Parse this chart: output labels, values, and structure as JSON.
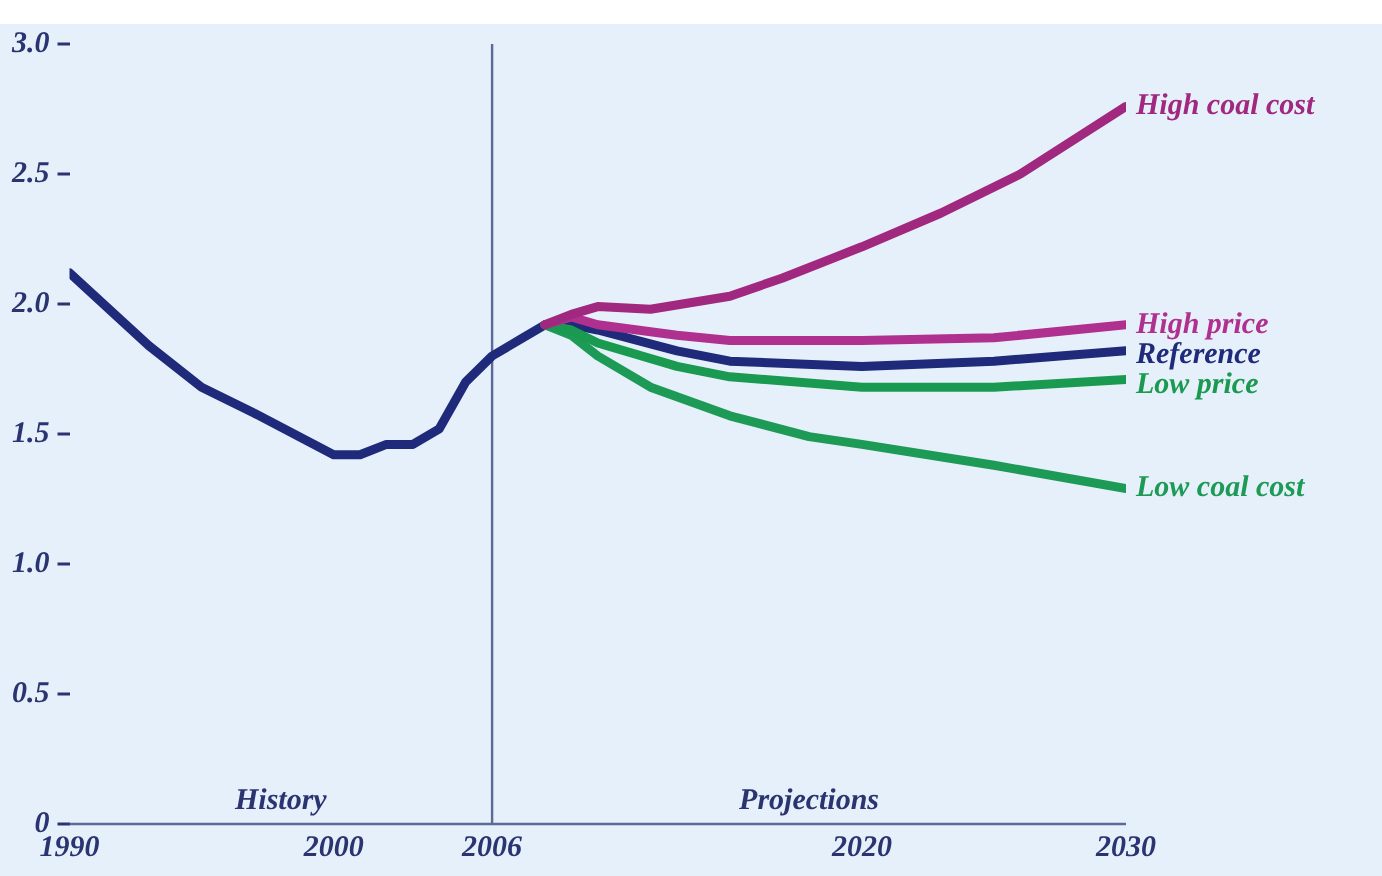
{
  "chart_data": {
    "type": "line",
    "xlim": [
      1990,
      2030
    ],
    "ylim": [
      0,
      3
    ],
    "xticks": [
      1990,
      2000,
      2006,
      2020,
      2030
    ],
    "yticks": [
      {
        "value": 0,
        "label": "0"
      },
      {
        "value": 0.5,
        "label": "0.5"
      },
      {
        "value": 1,
        "label": "1.0"
      },
      {
        "value": 1.5,
        "label": "1.5"
      },
      {
        "value": 2,
        "label": "2.0"
      },
      {
        "value": 2.5,
        "label": "2.5"
      },
      {
        "value": 3,
        "label": "3.0"
      }
    ],
    "grid": false,
    "legend": false,
    "marker": "none",
    "line_style": "solid",
    "ref_lines": [
      {
        "axis": "x",
        "value": 2006,
        "color": "#5a6a9a"
      }
    ],
    "annotations": [
      "History",
      "Projections"
    ],
    "series": [
      {
        "name": "High coal cost",
        "color": "#a0287f",
        "x": [
          2008,
          2009,
          2010,
          2012,
          2015,
          2017,
          2020,
          2023,
          2026,
          2030
        ],
        "values": [
          1.92,
          1.96,
          1.99,
          1.98,
          2.03,
          2.1,
          2.22,
          2.35,
          2.5,
          2.76
        ]
      },
      {
        "name": "High price",
        "color": "#b0308f",
        "x": [
          2008,
          2009,
          2010,
          2013,
          2015,
          2020,
          2025,
          2030
        ],
        "values": [
          1.92,
          1.95,
          1.92,
          1.88,
          1.86,
          1.86,
          1.87,
          1.92
        ]
      },
      {
        "name": "Low price",
        "color": "#1a9a50",
        "x": [
          2008,
          2009,
          2010,
          2013,
          2015,
          2020,
          2025,
          2030
        ],
        "values": [
          1.92,
          1.9,
          1.85,
          1.76,
          1.72,
          1.68,
          1.68,
          1.71
        ]
      },
      {
        "name": "Low coal cost",
        "color": "#1d9a55",
        "x": [
          2008,
          2009,
          2010,
          2012,
          2015,
          2018,
          2020,
          2025,
          2030
        ],
        "values": [
          1.92,
          1.88,
          1.8,
          1.68,
          1.57,
          1.49,
          1.46,
          1.38,
          1.29
        ]
      },
      {
        "name": "Reference",
        "color": "#1f2a7a",
        "x": [
          1990,
          1993,
          1995,
          1997,
          2000,
          2001,
          2002,
          2003,
          2004,
          2005,
          2006,
          2007,
          2008,
          2009,
          2010,
          2013,
          2015,
          2020,
          2025,
          2030
        ],
        "values": [
          2.12,
          1.84,
          1.68,
          1.58,
          1.42,
          1.42,
          1.46,
          1.46,
          1.52,
          1.7,
          1.8,
          1.86,
          1.92,
          1.92,
          1.9,
          1.82,
          1.78,
          1.76,
          1.78,
          1.82
        ]
      }
    ]
  }
}
